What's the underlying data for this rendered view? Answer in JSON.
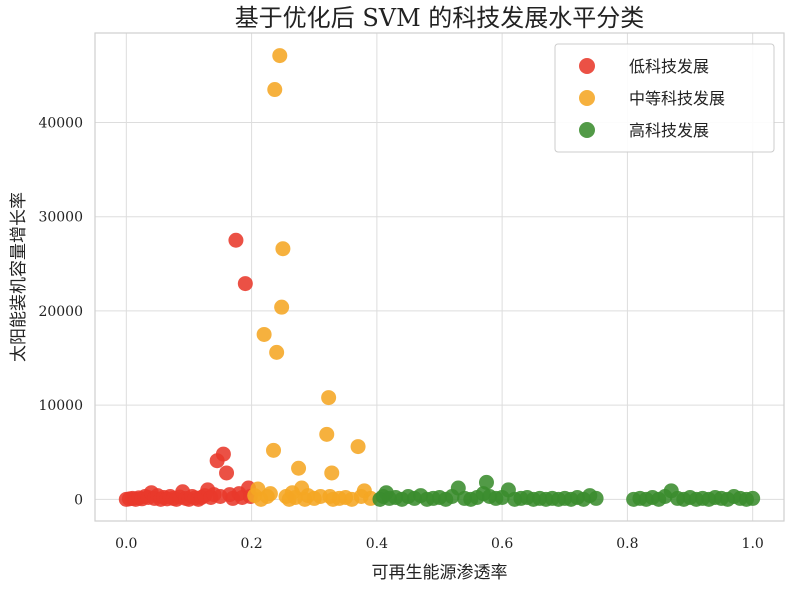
{
  "chart_data": {
    "type": "scatter",
    "title": "基于优化后 SVM 的科技发展水平分类",
    "xlabel": "可再生能源渗透率",
    "ylabel": "太阳能装机容量增长率",
    "xlim": [
      -0.05,
      1.05
    ],
    "ylim": [
      -2300,
      49500
    ],
    "xticks": [
      0.0,
      0.2,
      0.4,
      0.6,
      0.8,
      1.0
    ],
    "xtick_labels": [
      "0.0",
      "0.2",
      "0.4",
      "0.6",
      "0.8",
      "1.0"
    ],
    "yticks": [
      0,
      10000,
      20000,
      30000,
      40000
    ],
    "ytick_labels": [
      "0",
      "10000",
      "20000",
      "30000",
      "40000"
    ],
    "grid": true,
    "legend_position": "top-right",
    "series": [
      {
        "name": "低科技发展",
        "color": "#e8392b",
        "points": [
          [
            0.0,
            0
          ],
          [
            0.005,
            50
          ],
          [
            0.01,
            100
          ],
          [
            0.015,
            0
          ],
          [
            0.02,
            150
          ],
          [
            0.025,
            60
          ],
          [
            0.03,
            300
          ],
          [
            0.035,
            200
          ],
          [
            0.04,
            700
          ],
          [
            0.045,
            100
          ],
          [
            0.05,
            400
          ],
          [
            0.055,
            0
          ],
          [
            0.06,
            200
          ],
          [
            0.065,
            50
          ],
          [
            0.07,
            300
          ],
          [
            0.075,
            100
          ],
          [
            0.08,
            0
          ],
          [
            0.085,
            250
          ],
          [
            0.09,
            800
          ],
          [
            0.095,
            100
          ],
          [
            0.1,
            0
          ],
          [
            0.105,
            300
          ],
          [
            0.11,
            150
          ],
          [
            0.115,
            0
          ],
          [
            0.12,
            200
          ],
          [
            0.125,
            400
          ],
          [
            0.13,
            1000
          ],
          [
            0.135,
            200
          ],
          [
            0.14,
            500
          ],
          [
            0.145,
            4100
          ],
          [
            0.15,
            300
          ],
          [
            0.155,
            4800
          ],
          [
            0.16,
            2800
          ],
          [
            0.165,
            500
          ],
          [
            0.17,
            100
          ],
          [
            0.175,
            27500
          ],
          [
            0.18,
            600
          ],
          [
            0.185,
            200
          ],
          [
            0.19,
            22900
          ],
          [
            0.195,
            1200
          ],
          [
            0.198,
            300
          ]
        ]
      },
      {
        "name": "中等科技发展",
        "color": "#f5a623",
        "points": [
          [
            0.205,
            400
          ],
          [
            0.21,
            1100
          ],
          [
            0.215,
            0
          ],
          [
            0.22,
            17500
          ],
          [
            0.225,
            300
          ],
          [
            0.23,
            600
          ],
          [
            0.235,
            5200
          ],
          [
            0.237,
            43500
          ],
          [
            0.24,
            15600
          ],
          [
            0.245,
            47100
          ],
          [
            0.248,
            20400
          ],
          [
            0.25,
            26600
          ],
          [
            0.255,
            300
          ],
          [
            0.26,
            0
          ],
          [
            0.265,
            700
          ],
          [
            0.27,
            200
          ],
          [
            0.275,
            3300
          ],
          [
            0.28,
            1200
          ],
          [
            0.285,
            0
          ],
          [
            0.29,
            400
          ],
          [
            0.3,
            100
          ],
          [
            0.31,
            300
          ],
          [
            0.32,
            6900
          ],
          [
            0.323,
            10800
          ],
          [
            0.325,
            300
          ],
          [
            0.328,
            2800
          ],
          [
            0.33,
            0
          ],
          [
            0.34,
            100
          ],
          [
            0.35,
            200
          ],
          [
            0.36,
            0
          ],
          [
            0.37,
            5600
          ],
          [
            0.375,
            300
          ],
          [
            0.38,
            900
          ],
          [
            0.39,
            100
          ]
        ]
      },
      {
        "name": "高科技发展",
        "color": "#3a8c2e",
        "points": [
          [
            0.405,
            0
          ],
          [
            0.41,
            300
          ],
          [
            0.415,
            700
          ],
          [
            0.42,
            100
          ],
          [
            0.43,
            200
          ],
          [
            0.44,
            0
          ],
          [
            0.45,
            300
          ],
          [
            0.46,
            100
          ],
          [
            0.47,
            400
          ],
          [
            0.48,
            0
          ],
          [
            0.49,
            100
          ],
          [
            0.5,
            200
          ],
          [
            0.51,
            0
          ],
          [
            0.52,
            300
          ],
          [
            0.53,
            1200
          ],
          [
            0.54,
            100
          ],
          [
            0.55,
            0
          ],
          [
            0.56,
            200
          ],
          [
            0.57,
            600
          ],
          [
            0.575,
            1800
          ],
          [
            0.58,
            300
          ],
          [
            0.59,
            100
          ],
          [
            0.6,
            200
          ],
          [
            0.61,
            1000
          ],
          [
            0.62,
            0
          ],
          [
            0.63,
            100
          ],
          [
            0.64,
            200
          ],
          [
            0.65,
            0
          ],
          [
            0.66,
            100
          ],
          [
            0.67,
            0
          ],
          [
            0.68,
            100
          ],
          [
            0.69,
            0
          ],
          [
            0.7,
            100
          ],
          [
            0.71,
            0
          ],
          [
            0.72,
            200
          ],
          [
            0.73,
            0
          ],
          [
            0.74,
            400
          ],
          [
            0.75,
            100
          ],
          [
            0.81,
            0
          ],
          [
            0.82,
            100
          ],
          [
            0.83,
            0
          ],
          [
            0.84,
            200
          ],
          [
            0.85,
            0
          ],
          [
            0.86,
            300
          ],
          [
            0.87,
            900
          ],
          [
            0.88,
            100
          ],
          [
            0.89,
            0
          ],
          [
            0.9,
            200
          ],
          [
            0.91,
            0
          ],
          [
            0.92,
            100
          ],
          [
            0.93,
            0
          ],
          [
            0.94,
            200
          ],
          [
            0.95,
            100
          ],
          [
            0.96,
            0
          ],
          [
            0.97,
            300
          ],
          [
            0.98,
            100
          ],
          [
            0.99,
            0
          ],
          [
            1.0,
            100
          ]
        ]
      }
    ]
  }
}
